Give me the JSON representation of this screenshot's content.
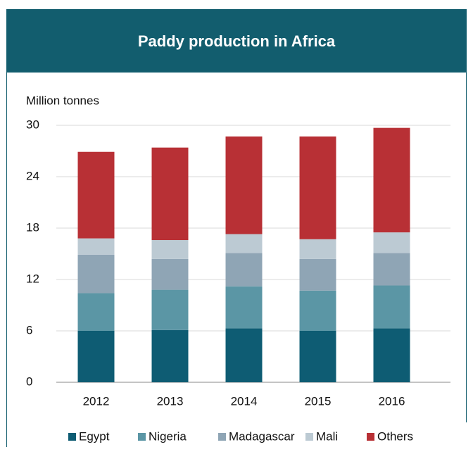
{
  "chart_data": {
    "type": "stacked_bar",
    "title": "Paddy production in Africa",
    "y_label": "Million tonnes",
    "categories": [
      "2012",
      "2013",
      "2014",
      "2015",
      "2016"
    ],
    "series": [
      {
        "name": "Egypt",
        "color": "#0e5c73",
        "values": [
          6.0,
          6.1,
          6.3,
          6.0,
          6.3
        ]
      },
      {
        "name": "Nigeria",
        "color": "#5b96a5",
        "values": [
          4.4,
          4.7,
          4.9,
          4.7,
          5.0
        ]
      },
      {
        "name": "Madagascar",
        "color": "#8fa5b5",
        "values": [
          4.5,
          3.6,
          3.9,
          3.7,
          3.8
        ]
      },
      {
        "name": "Mali",
        "color": "#bccad3",
        "values": [
          1.9,
          2.2,
          2.2,
          2.3,
          2.4
        ]
      },
      {
        "name": "Others",
        "color": "#b83035",
        "values": [
          10.1,
          10.8,
          11.4,
          12.0,
          12.2
        ]
      }
    ],
    "ylim": [
      0,
      30
    ],
    "yticks": [
      0,
      6,
      12,
      18,
      24,
      30
    ],
    "grid": true,
    "legend": "bottom"
  }
}
